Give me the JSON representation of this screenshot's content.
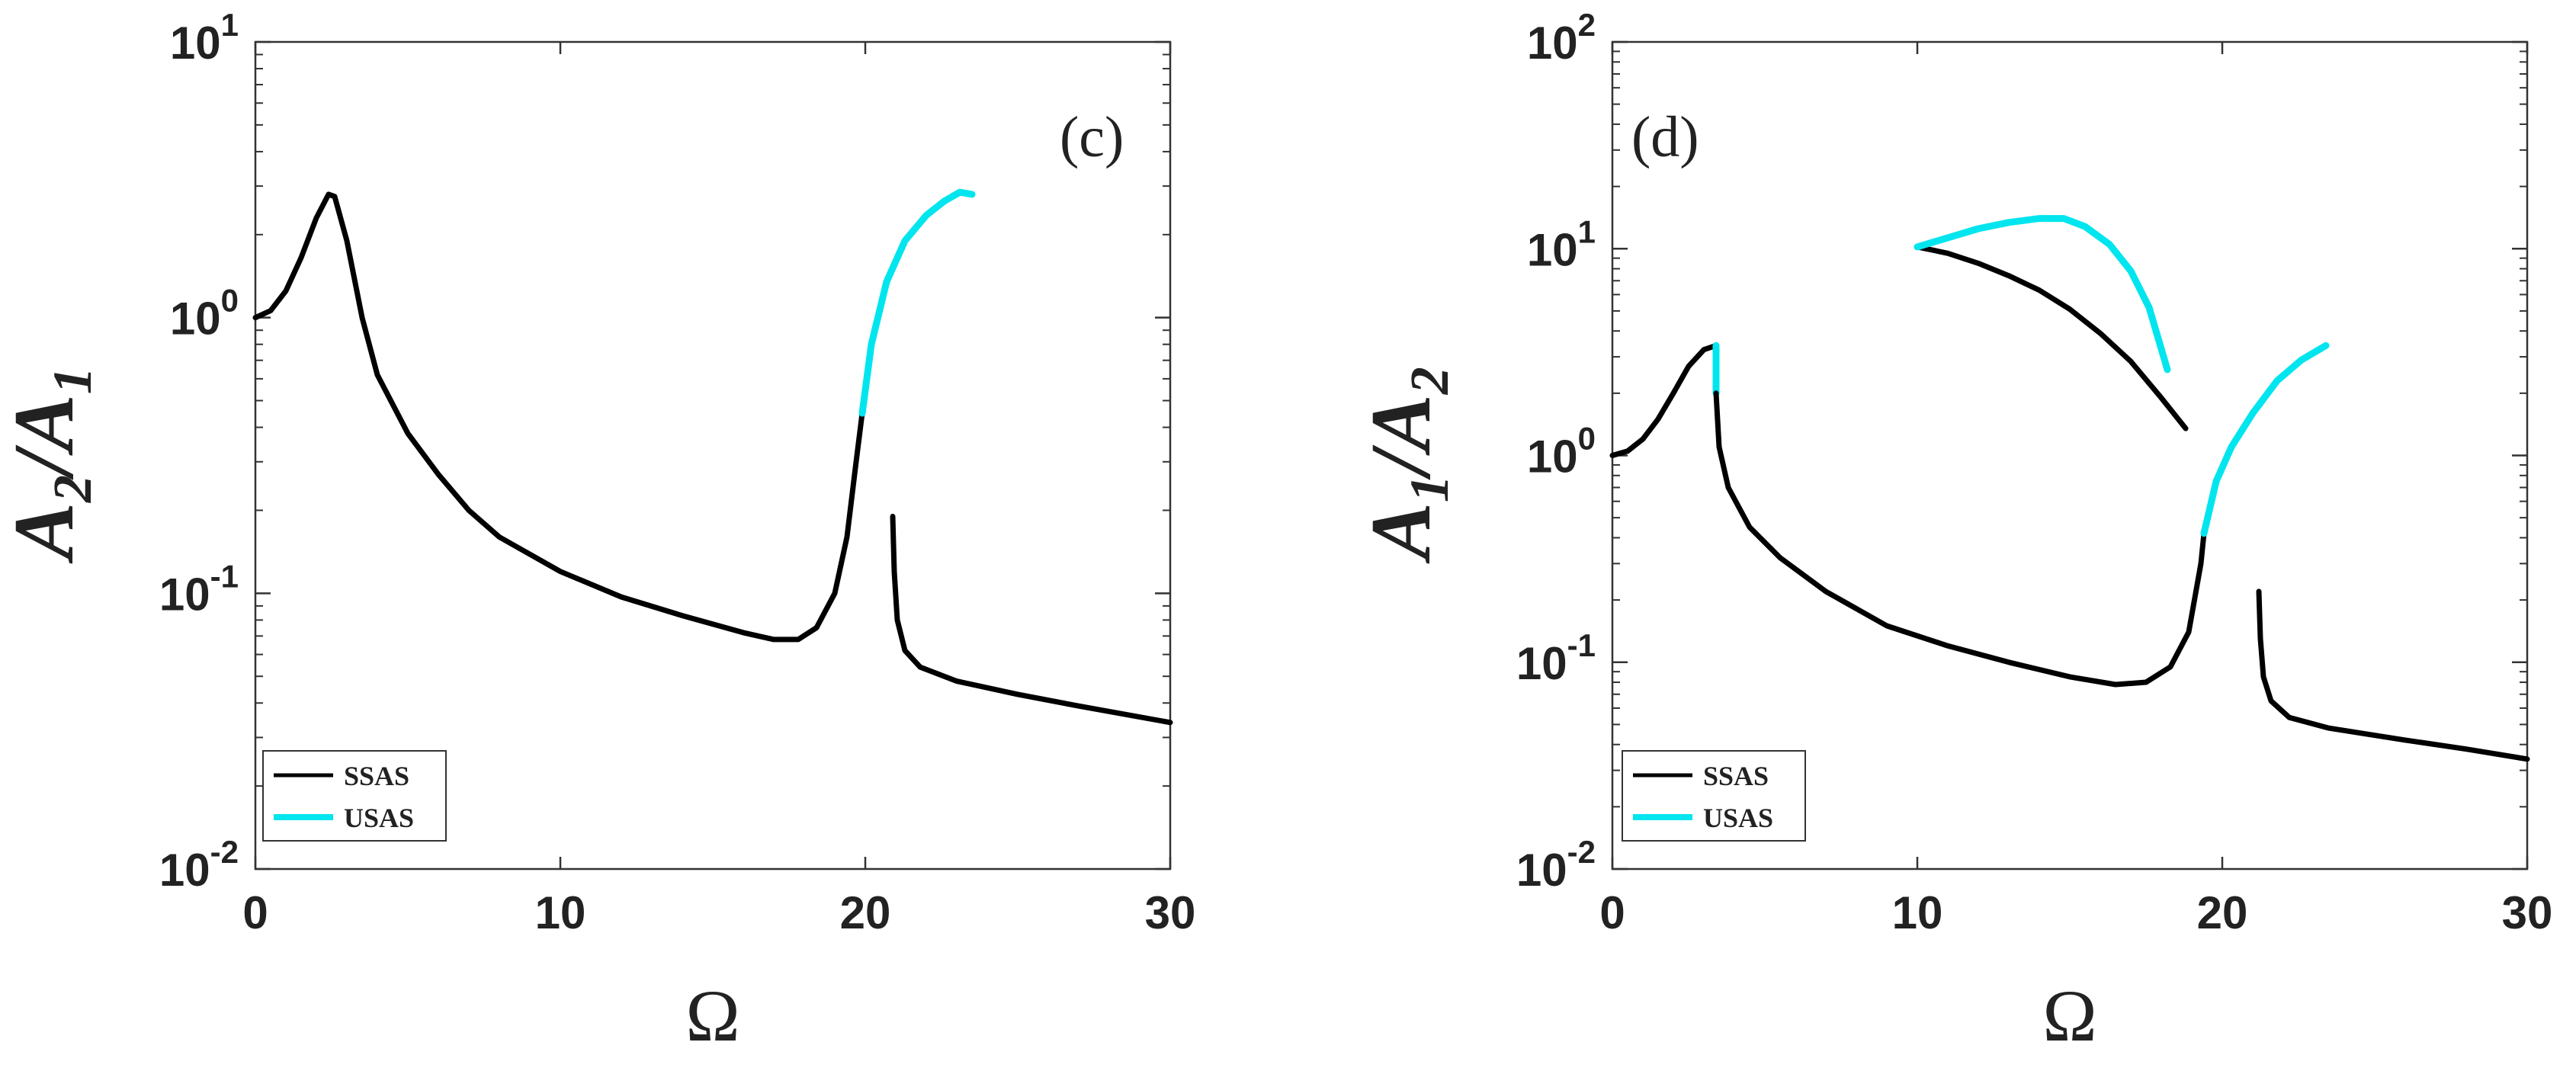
{
  "chart_data": [
    {
      "type": "line",
      "panel_label": "(c)",
      "xlabel": "Ω",
      "ylabel": {
        "main": "A",
        "sub1": "2",
        "slash": "/",
        "main2": "A",
        "sub2": "1"
      },
      "xlim": [
        0,
        30
      ],
      "ylim_log10": [
        -2,
        1
      ],
      "yscale": "log",
      "x_ticks": [
        "0",
        "10",
        "20",
        "30"
      ],
      "y_ticks": [
        {
          "base": "10",
          "exp": "-2"
        },
        {
          "base": "10",
          "exp": "-1"
        },
        {
          "base": "10",
          "exp": "0"
        },
        {
          "base": "10",
          "exp": "1"
        }
      ],
      "legend": {
        "position": "bottom-left",
        "entries": [
          "SSAS",
          "USAS"
        ]
      },
      "colors": {
        "SSAS": "#000000",
        "USAS": "#00e5ee"
      },
      "series": [
        {
          "name": "SSAS",
          "points": [
            [
              0,
              1.0
            ],
            [
              0.5,
              1.06
            ],
            [
              1.0,
              1.25
            ],
            [
              1.5,
              1.65
            ],
            [
              2.0,
              2.3
            ],
            [
              2.4,
              2.8
            ],
            [
              2.6,
              2.75
            ],
            [
              3.0,
              1.9
            ],
            [
              3.5,
              1.0
            ],
            [
              4.0,
              0.62
            ],
            [
              5.0,
              0.38
            ],
            [
              6.0,
              0.27
            ],
            [
              7.0,
              0.2
            ],
            [
              8.0,
              0.16
            ],
            [
              10.0,
              0.12
            ],
            [
              12.0,
              0.097
            ],
            [
              14.0,
              0.083
            ],
            [
              16.0,
              0.072
            ],
            [
              17.0,
              0.068
            ],
            [
              17.8,
              0.068
            ],
            [
              18.4,
              0.075
            ],
            [
              19.0,
              0.1
            ],
            [
              19.4,
              0.16
            ],
            [
              19.7,
              0.3
            ],
            [
              19.9,
              0.45
            ]
          ]
        },
        {
          "name": "USAS",
          "points": [
            [
              19.9,
              0.45
            ],
            [
              20.2,
              0.8
            ],
            [
              20.7,
              1.35
            ],
            [
              21.3,
              1.9
            ],
            [
              22.0,
              2.35
            ],
            [
              22.6,
              2.65
            ],
            [
              23.1,
              2.85
            ],
            [
              23.5,
              2.8
            ]
          ]
        },
        {
          "name": "SSAS",
          "points": [
            [
              20.9,
              0.19
            ],
            [
              20.95,
              0.12
            ],
            [
              21.05,
              0.08
            ],
            [
              21.3,
              0.062
            ],
            [
              21.8,
              0.054
            ],
            [
              23.0,
              0.048
            ],
            [
              25.0,
              0.043
            ],
            [
              27.0,
              0.039
            ],
            [
              30.0,
              0.034
            ]
          ]
        }
      ]
    },
    {
      "type": "line",
      "panel_label": "(d)",
      "xlabel": "Ω",
      "ylabel": {
        "main": "A",
        "sub1": "1",
        "slash": "/",
        "main2": "A",
        "sub2": "2"
      },
      "xlim": [
        0,
        30
      ],
      "ylim_log10": [
        -2,
        2
      ],
      "yscale": "log",
      "x_ticks": [
        "0",
        "10",
        "20",
        "30"
      ],
      "y_ticks": [
        {
          "base": "10",
          "exp": "-2"
        },
        {
          "base": "10",
          "exp": "-1"
        },
        {
          "base": "10",
          "exp": "0"
        },
        {
          "base": "10",
          "exp": "1"
        },
        {
          "base": "10",
          "exp": "2"
        }
      ],
      "legend": {
        "position": "bottom-left",
        "entries": [
          "SSAS",
          "USAS"
        ]
      },
      "colors": {
        "SSAS": "#000000",
        "USAS": "#00e5ee"
      },
      "series": [
        {
          "name": "SSAS",
          "points": [
            [
              0,
              1.0
            ],
            [
              0.5,
              1.05
            ],
            [
              1.0,
              1.2
            ],
            [
              1.5,
              1.5
            ],
            [
              2.0,
              2.0
            ],
            [
              2.5,
              2.7
            ],
            [
              3.0,
              3.25
            ],
            [
              3.4,
              3.4
            ]
          ]
        },
        {
          "name": "USAS",
          "points": [
            [
              3.4,
              3.4
            ],
            [
              3.4,
              2.0
            ]
          ]
        },
        {
          "name": "SSAS",
          "points": [
            [
              3.4,
              2.0
            ],
            [
              3.5,
              1.1
            ],
            [
              3.8,
              0.7
            ],
            [
              4.5,
              0.45
            ],
            [
              5.5,
              0.32
            ],
            [
              7.0,
              0.22
            ],
            [
              9.0,
              0.15
            ],
            [
              11.0,
              0.12
            ],
            [
              13.0,
              0.1
            ],
            [
              15.0,
              0.085
            ],
            [
              16.5,
              0.078
            ],
            [
              17.5,
              0.08
            ],
            [
              18.3,
              0.095
            ],
            [
              18.9,
              0.14
            ],
            [
              19.3,
              0.3
            ],
            [
              19.4,
              0.42
            ]
          ]
        },
        {
          "name": "USAS",
          "points": [
            [
              19.4,
              0.42
            ],
            [
              19.8,
              0.75
            ],
            [
              20.3,
              1.1
            ],
            [
              21.0,
              1.6
            ],
            [
              21.8,
              2.3
            ],
            [
              22.6,
              2.9
            ],
            [
              23.4,
              3.4
            ]
          ]
        },
        {
          "name": "SSAS",
          "points": [
            [
              10.0,
              10.2
            ],
            [
              11.0,
              9.5
            ],
            [
              12.0,
              8.5
            ],
            [
              13.0,
              7.4
            ],
            [
              14.0,
              6.3
            ],
            [
              15.0,
              5.1
            ],
            [
              16.0,
              3.9
            ],
            [
              17.0,
              2.85
            ],
            [
              18.0,
              1.9
            ],
            [
              18.8,
              1.35
            ]
          ]
        },
        {
          "name": "USAS",
          "points": [
            [
              10.0,
              10.2
            ],
            [
              11.0,
              11.3
            ],
            [
              12.0,
              12.5
            ],
            [
              13.0,
              13.4
            ],
            [
              14.0,
              14.0
            ],
            [
              14.8,
              14.0
            ],
            [
              15.5,
              12.8
            ],
            [
              16.3,
              10.5
            ],
            [
              17.0,
              7.8
            ],
            [
              17.6,
              5.2
            ],
            [
              18.2,
              2.6
            ]
          ]
        },
        {
          "name": "SSAS",
          "points": [
            [
              21.2,
              0.22
            ],
            [
              21.25,
              0.13
            ],
            [
              21.35,
              0.085
            ],
            [
              21.6,
              0.065
            ],
            [
              22.2,
              0.054
            ],
            [
              23.5,
              0.048
            ],
            [
              26.0,
              0.042
            ],
            [
              28.0,
              0.038
            ],
            [
              30.0,
              0.034
            ]
          ]
        }
      ]
    }
  ]
}
